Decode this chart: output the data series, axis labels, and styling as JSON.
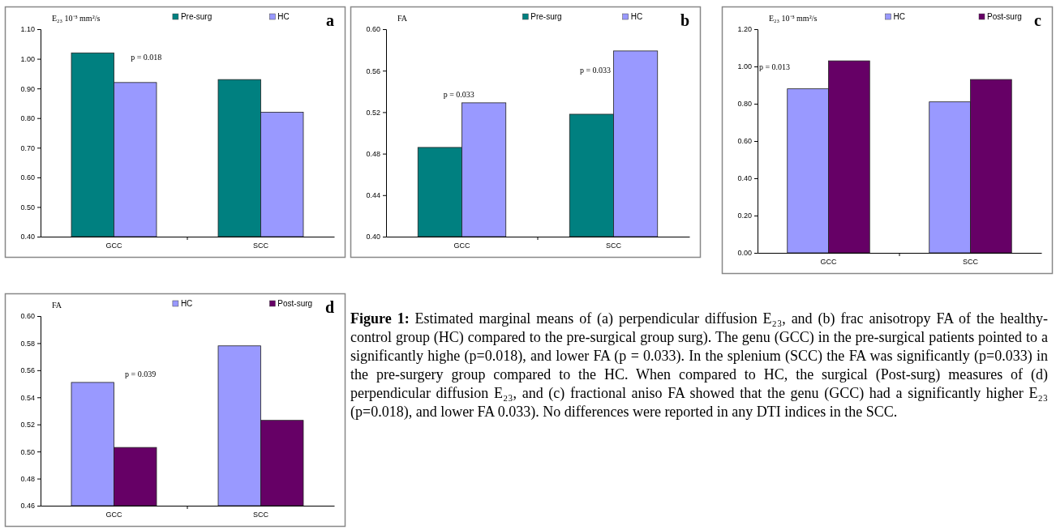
{
  "chart_data": [
    {
      "type": "bar",
      "title": "a",
      "ylabel": "E₂₃ 10⁻³ mm²/s",
      "categories": [
        "GCC",
        "SCC"
      ],
      "series": [
        {
          "name": "Pre-surg",
          "color": "#008080",
          "values": [
            1.02,
            0.93
          ]
        },
        {
          "name": "HC",
          "color": "#9999ff",
          "values": [
            0.92,
            0.82
          ]
        }
      ],
      "ylim": [
        0.4,
        1.1
      ],
      "yticks": [
        {
          "value": 0.4,
          "label": "0.40"
        },
        {
          "value": 0.5,
          "label": "0.50"
        },
        {
          "value": 0.6,
          "label": "0.60"
        },
        {
          "value": 0.7,
          "label": "0.70"
        },
        {
          "value": 0.8,
          "label": "0.80"
        },
        {
          "value": 0.9,
          "label": "0.90"
        },
        {
          "value": 1.0,
          "label": "1.00"
        },
        {
          "value": 1.1,
          "label": "1.10"
        }
      ],
      "annotations": [
        "p = 0.018"
      ],
      "legend": "top",
      "grid": false
    },
    {
      "type": "bar",
      "title": "b",
      "ylabel": "FA",
      "categories": [
        "GCC",
        "SCC"
      ],
      "series": [
        {
          "name": "Pre-surg",
          "color": "#008080",
          "values": [
            0.486,
            0.518
          ]
        },
        {
          "name": "HC",
          "color": "#9999ff",
          "values": [
            0.529,
            0.579
          ]
        }
      ],
      "ylim": [
        0.4,
        0.6
      ],
      "yticks": [
        {
          "value": 0.4,
          "label": "0.40"
        },
        {
          "value": 0.44,
          "label": "0.44"
        },
        {
          "value": 0.48,
          "label": "0.48"
        },
        {
          "value": 0.52,
          "label": "0.52"
        },
        {
          "value": 0.56,
          "label": "0.56"
        },
        {
          "value": 0.6,
          "label": "0.60"
        }
      ],
      "annotations": [
        "p = 0.033",
        "p = 0.033"
      ],
      "legend": "top",
      "grid": false
    },
    {
      "type": "bar",
      "title": "c",
      "ylabel": "E₂₃ 10⁻³ mm²/s",
      "categories": [
        "GCC",
        "SCC"
      ],
      "series": [
        {
          "name": "HC",
          "color": "#9999ff",
          "values": [
            0.88,
            0.81
          ]
        },
        {
          "name": "Post-surg",
          "color": "#660066",
          "values": [
            1.03,
            0.93
          ]
        }
      ],
      "ylim": [
        0,
        1.2
      ],
      "yticks": [
        {
          "value": 0,
          "label": "0.00"
        },
        {
          "value": 0.2,
          "label": "0.20"
        },
        {
          "value": 0.4,
          "label": "0.40"
        },
        {
          "value": 0.6,
          "label": "0.60"
        },
        {
          "value": 0.8,
          "label": "0.80"
        },
        {
          "value": 1.0,
          "label": "1.00"
        },
        {
          "value": 1.2,
          "label": "1.20"
        }
      ],
      "annotations": [
        "p = 0.013"
      ],
      "legend": "top",
      "grid": false
    },
    {
      "type": "bar",
      "title": "d",
      "ylabel": "FA",
      "categories": [
        "GCC",
        "SCC"
      ],
      "series": [
        {
          "name": "HC",
          "color": "#9999ff",
          "values": [
            0.551,
            0.578
          ]
        },
        {
          "name": "Post-surg",
          "color": "#660066",
          "values": [
            0.503,
            0.523
          ]
        }
      ],
      "ylim": [
        0.46,
        0.6
      ],
      "yticks": [
        {
          "value": 0.46,
          "label": "0.46"
        },
        {
          "value": 0.48,
          "label": "0.48"
        },
        {
          "value": 0.5,
          "label": "0.50"
        },
        {
          "value": 0.52,
          "label": "0.52"
        },
        {
          "value": 0.54,
          "label": "0.54"
        },
        {
          "value": 0.56,
          "label": "0.56"
        },
        {
          "value": 0.58,
          "label": "0.58"
        },
        {
          "value": 0.6,
          "label": "0.60"
        }
      ],
      "annotations": [
        "p = 0.039"
      ],
      "legend": "top",
      "grid": false
    },
    {
      "type": "other",
      "title": "Figure 1:",
      "annotations": [
        "Estimated marginal means of (a) perpendicular diffusion E₂₃, and (b) frac anisotropy FA of the healthy-control group (HC) compared to the pre-surgical group surg). The genu (GCC) in the pre-surgical patients pointed to a significantly highe (p=0.018), and lower FA (p = 0.033). In the splenium (SCC) the FA was significantly (p=0.033) in the pre-surgery group compared to the HC. When compared to HC, the surgical (Post-surg) measures of (d) perpendicular diffusion E₂₃, and (c) fractional aniso FA showed that the genu (GCC) had a significantly higher E₂₃ (p=0.018), and lower FA 0.033). No differences were reported in any DTI indices in the SCC."
      ]
    }
  ]
}
